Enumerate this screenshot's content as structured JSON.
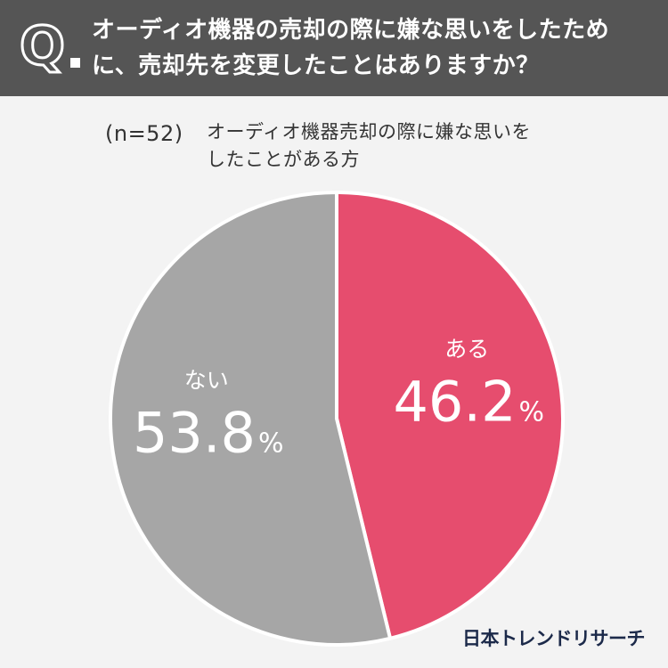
{
  "header": {
    "q_mark": "Q",
    "question_lines": [
      "オーディオ機器の売却の際に嫌な思いをしたため",
      "に、売却先を変更したことはありますか？"
    ]
  },
  "subtitle": {
    "sample": "(n=52)",
    "label_lines": [
      "オーディオ機器売却の際に嫌な思いを",
      "したことがある方"
    ]
  },
  "brand": "日本トレンドリサーチ",
  "colors": {
    "header_bg": "#555555",
    "background": "#f3f3f3",
    "yes": "#e64d6e",
    "no": "#a6a6a6"
  },
  "chart_data": {
    "type": "pie",
    "title": "オーディオ機器売却の際に嫌な思いをしたことがある方",
    "n": 52,
    "unit": "%",
    "slices": [
      {
        "label": "ある",
        "value": 46.2,
        "color": "#e64d6e"
      },
      {
        "label": "ない",
        "value": 53.8,
        "color": "#a6a6a6"
      }
    ]
  }
}
